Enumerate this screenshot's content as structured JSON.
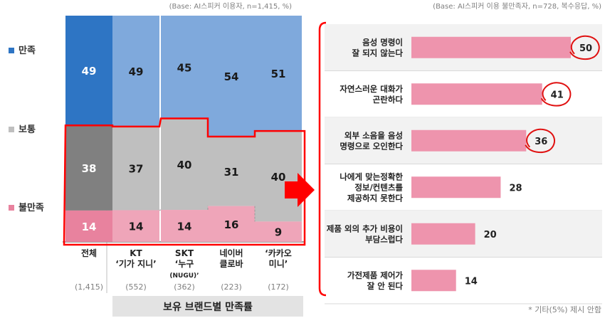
{
  "chart_data": [
    {
      "type": "bar",
      "subtype": "stacked-100",
      "base_note": "(Base: AI스피커 이용자, n=1,415, %)",
      "legend": [
        {
          "key": "satisfied",
          "label": "만족",
          "color": "#2e75c4"
        },
        {
          "key": "neutral",
          "label": "보통",
          "color": "#bfbfbf"
        },
        {
          "key": "dissatisfied",
          "label": "불만족",
          "color": "#e8829e"
        }
      ],
      "categories": [
        {
          "label": [
            "전체"
          ],
          "n": "(1,415)"
        },
        {
          "label": [
            "KT",
            "‘기가 지니’"
          ],
          "n": "(552)"
        },
        {
          "label": [
            "SKT",
            "‘누구",
            "(NUGU)’"
          ],
          "n": "(362)"
        },
        {
          "label": [
            "네이버",
            "클로바"
          ],
          "n": "(223)"
        },
        {
          "label": [
            "‘카카오",
            "미니’"
          ],
          "n": "(172)"
        }
      ],
      "series": [
        {
          "key": "satisfied",
          "values": [
            49,
            49,
            45,
            54,
            51
          ]
        },
        {
          "key": "neutral",
          "values": [
            38,
            37,
            40,
            31,
            40
          ]
        },
        {
          "key": "dissatisfied",
          "values": [
            14,
            14,
            14,
            16,
            9
          ]
        }
      ],
      "bar_colors": {
        "total": {
          "satisfied": "#2e75c4",
          "neutral": "#808080",
          "dissatisfied": "#e8829e"
        },
        "brand": {
          "satisfied": "#7fa9dc",
          "neutral": "#bfbfbf",
          "dissatisfied": "#efa5b9"
        }
      },
      "group_label": "보유 브랜드별 만족률",
      "highlight_color": "#ff0000"
    },
    {
      "type": "bar",
      "orientation": "horizontal",
      "base_note": "(Base: AI스피커 이용 불만족자, n=728, 복수응답, %)",
      "categories": [
        [
          "음성 명령이",
          "잘 되지 않는다"
        ],
        [
          "자연스러운 대화가",
          "곤란하다"
        ],
        [
          "외부 소음을 음성",
          "명령으로 오인한다"
        ],
        [
          "나에게 맞는정확한",
          "정보/컨텐츠를",
          "제공하지 못한다"
        ],
        [
          "제품 외의 추가 비용이",
          "부담스럽다"
        ],
        [
          "가전제품 제어가",
          "잘 안 된다"
        ]
      ],
      "values": [
        50,
        41,
        36,
        28,
        20,
        14
      ],
      "circled": [
        true,
        true,
        true,
        false,
        false,
        false
      ],
      "xlim": [
        0,
        50
      ],
      "bar_color": "#ee94ad",
      "footnote": "* 기타(5%) 제시 안함"
    }
  ]
}
